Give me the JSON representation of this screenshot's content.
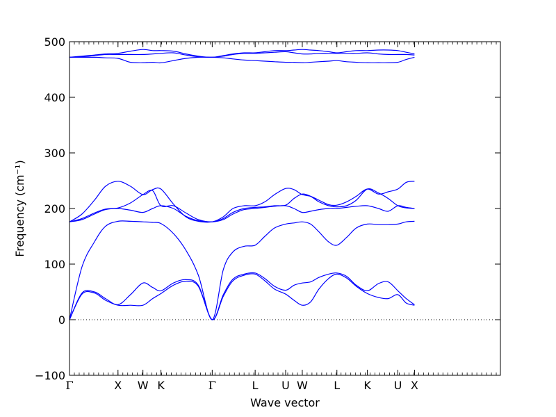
{
  "chart_data": {
    "type": "line",
    "xlabel": "Wave vector",
    "ylabel": "Frequency (cm⁻¹)",
    "ylim": [
      -100,
      500
    ],
    "yticks": [
      -100,
      0,
      100,
      200,
      300,
      400,
      500
    ],
    "grid": false,
    "line_color": "#0000ff",
    "zero_line": {
      "y": 0,
      "style": "dotted"
    },
    "xrange": [
      0,
      3.11
    ],
    "high_symmetry_points": [
      {
        "label": "Γ",
        "x": 0.0
      },
      {
        "label": "X",
        "x": 0.35
      },
      {
        "label": "W",
        "x": 0.53
      },
      {
        "label": "K",
        "x": 0.66
      },
      {
        "label": "Γ",
        "x": 1.03
      },
      {
        "label": "L",
        "x": 1.34
      },
      {
        "label": "U",
        "x": 1.56
      },
      {
        "label": "W",
        "x": 1.68
      },
      {
        "label": "L",
        "x": 1.93
      },
      {
        "label": "K",
        "x": 2.15
      },
      {
        "label": "U",
        "x": 2.37
      },
      {
        "label": "X",
        "x": 2.49
      }
    ],
    "series": [
      {
        "x": [
          0,
          0.09,
          0.18,
          0.26,
          0.35,
          0.44,
          0.53,
          0.6,
          0.66,
          0.75,
          0.84,
          0.93,
          1.03,
          1.11,
          1.18,
          1.26,
          1.34,
          1.41,
          1.48,
          1.56,
          1.62,
          1.68,
          1.74,
          1.8,
          1.87,
          1.93,
          2.0,
          2.07,
          2.15,
          2.23,
          2.3,
          2.37,
          2.43,
          2.49
        ],
        "y": [
          0,
          46,
          48,
          35,
          26,
          26,
          26,
          38,
          47,
          62,
          69,
          60,
          0,
          42,
          70,
          80,
          82,
          70,
          55,
          46,
          35,
          26,
          32,
          55,
          74,
          82,
          75,
          60,
          47,
          40,
          38,
          45,
          30,
          26
        ]
      },
      {
        "x": [
          0,
          0.09,
          0.18,
          0.26,
          0.35,
          0.44,
          0.53,
          0.6,
          0.66,
          0.75,
          0.84,
          0.93,
          1.03,
          1.11,
          1.18,
          1.26,
          1.34,
          1.41,
          1.48,
          1.56,
          1.62,
          1.68,
          1.74,
          1.8,
          1.87,
          1.93,
          2.0,
          2.07,
          2.15,
          2.23,
          2.3,
          2.37,
          2.43,
          2.49
        ],
        "y": [
          0,
          48,
          50,
          38,
          27,
          45,
          66,
          58,
          52,
          66,
          72,
          62,
          0,
          45,
          73,
          82,
          84,
          74,
          60,
          53,
          62,
          66,
          68,
          76,
          82,
          84,
          78,
          62,
          52,
          65,
          68,
          52,
          38,
          27
        ]
      },
      {
        "x": [
          0,
          0.09,
          0.18,
          0.26,
          0.35,
          0.44,
          0.53,
          0.6,
          0.66,
          0.75,
          0.84,
          0.93,
          1.03,
          1.11,
          1.18,
          1.26,
          1.34,
          1.41,
          1.48,
          1.56,
          1.62,
          1.68,
          1.74,
          1.8,
          1.87,
          1.93,
          2.0,
          2.07,
          2.15,
          2.23,
          2.3,
          2.37,
          2.43,
          2.49
        ],
        "y": [
          0,
          95,
          140,
          168,
          177,
          177,
          176,
          175,
          173,
          155,
          125,
          80,
          0,
          90,
          122,
          132,
          134,
          150,
          165,
          172,
          174,
          176,
          172,
          158,
          140,
          134,
          148,
          165,
          172,
          171,
          171,
          172,
          176,
          177
        ]
      },
      {
        "x": [
          0,
          0.09,
          0.18,
          0.26,
          0.35,
          0.44,
          0.53,
          0.6,
          0.66,
          0.75,
          0.84,
          0.93,
          1.03,
          1.11,
          1.18,
          1.26,
          1.34,
          1.41,
          1.48,
          1.56,
          1.62,
          1.68,
          1.74,
          1.8,
          1.87,
          1.93,
          2.0,
          2.07,
          2.15,
          2.23,
          2.3,
          2.37,
          2.43,
          2.49
        ],
        "y": [
          176,
          180,
          190,
          198,
          200,
          197,
          193,
          200,
          205,
          200,
          186,
          178,
          176,
          180,
          190,
          198,
          200,
          202,
          204,
          205,
          200,
          193,
          195,
          198,
          200,
          200,
          202,
          204,
          205,
          200,
          195,
          205,
          202,
          200
        ]
      },
      {
        "x": [
          0,
          0.09,
          0.18,
          0.26,
          0.35,
          0.44,
          0.53,
          0.6,
          0.66,
          0.75,
          0.84,
          0.93,
          1.03,
          1.11,
          1.18,
          1.26,
          1.34,
          1.41,
          1.48,
          1.56,
          1.62,
          1.68,
          1.74,
          1.8,
          1.87,
          1.93,
          2.0,
          2.07,
          2.15,
          2.23,
          2.3,
          2.37,
          2.43,
          2.49
        ],
        "y": [
          176,
          182,
          192,
          199,
          201,
          210,
          225,
          232,
          205,
          205,
          192,
          180,
          176,
          182,
          193,
          200,
          202,
          203,
          205,
          206,
          218,
          226,
          222,
          212,
          205,
          203,
          205,
          215,
          235,
          228,
          218,
          205,
          201,
          200
        ]
      },
      {
        "x": [
          0,
          0.09,
          0.18,
          0.26,
          0.35,
          0.44,
          0.53,
          0.6,
          0.66,
          0.75,
          0.84,
          0.93,
          1.03,
          1.11,
          1.18,
          1.26,
          1.34,
          1.41,
          1.48,
          1.56,
          1.62,
          1.68,
          1.74,
          1.8,
          1.87,
          1.93,
          2.0,
          2.07,
          2.15,
          2.23,
          2.3,
          2.37,
          2.43,
          2.49
        ],
        "y": [
          176,
          190,
          215,
          240,
          249,
          240,
          225,
          234,
          235,
          208,
          185,
          177,
          176,
          185,
          200,
          205,
          205,
          212,
          225,
          236,
          234,
          225,
          222,
          215,
          207,
          206,
          212,
          222,
          235,
          226,
          230,
          235,
          247,
          249
        ]
      },
      {
        "x": [
          0,
          0.09,
          0.18,
          0.26,
          0.35,
          0.44,
          0.53,
          0.6,
          0.66,
          0.75,
          0.84,
          0.93,
          1.03,
          1.11,
          1.18,
          1.26,
          1.34,
          1.41,
          1.48,
          1.56,
          1.62,
          1.68,
          1.74,
          1.8,
          1.87,
          1.93,
          2.0,
          2.07,
          2.15,
          2.23,
          2.3,
          2.37,
          2.43,
          2.49
        ],
        "y": [
          472,
          472,
          472,
          471,
          470,
          463,
          462,
          463,
          462,
          466,
          470,
          472,
          472,
          471,
          469,
          467,
          466,
          465,
          464,
          463,
          463,
          462,
          463,
          464,
          465,
          466,
          464,
          463,
          462,
          462,
          462,
          463,
          468,
          472
        ]
      },
      {
        "x": [
          0,
          0.09,
          0.18,
          0.26,
          0.35,
          0.44,
          0.53,
          0.6,
          0.66,
          0.75,
          0.84,
          0.93,
          1.03,
          1.11,
          1.18,
          1.26,
          1.34,
          1.41,
          1.48,
          1.56,
          1.62,
          1.68,
          1.74,
          1.8,
          1.87,
          1.93,
          2.0,
          2.07,
          2.15,
          2.23,
          2.3,
          2.37,
          2.43,
          2.49
        ],
        "y": [
          472,
          473,
          475,
          477,
          477,
          477,
          477,
          478,
          479,
          480,
          476,
          473,
          472,
          474,
          477,
          479,
          479,
          480,
          481,
          482,
          480,
          478,
          478,
          479,
          479,
          479,
          479,
          479,
          480,
          478,
          477,
          477,
          477,
          476
        ]
      },
      {
        "x": [
          0,
          0.09,
          0.18,
          0.26,
          0.35,
          0.44,
          0.53,
          0.6,
          0.66,
          0.75,
          0.84,
          0.93,
          1.03,
          1.11,
          1.18,
          1.26,
          1.34,
          1.41,
          1.48,
          1.56,
          1.62,
          1.68,
          1.74,
          1.8,
          1.87,
          1.93,
          2.0,
          2.07,
          2.15,
          2.23,
          2.3,
          2.37,
          2.43,
          2.49
        ],
        "y": [
          472,
          474,
          476,
          478,
          479,
          483,
          486,
          484,
          484,
          483,
          478,
          474,
          472,
          475,
          478,
          480,
          480,
          482,
          484,
          484,
          485,
          486,
          485,
          484,
          482,
          480,
          482,
          484,
          484,
          485,
          485,
          484,
          481,
          478
        ]
      }
    ]
  }
}
